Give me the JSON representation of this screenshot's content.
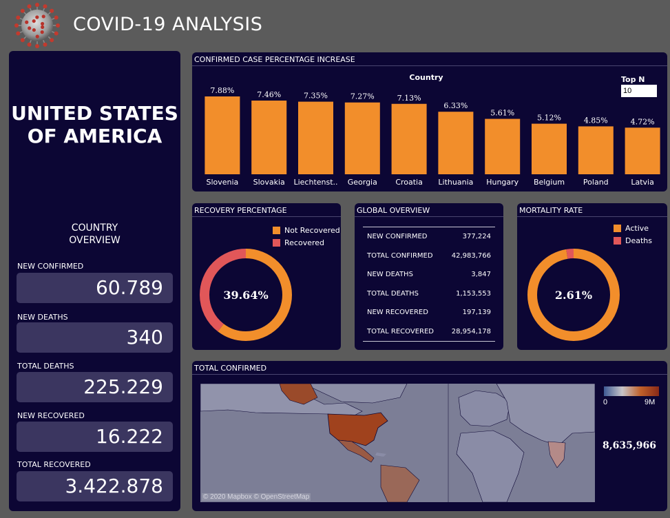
{
  "header": {
    "title": "COVID-19 ANALYSIS",
    "logo_icon": "coronavirus-icon"
  },
  "left_panel": {
    "country": "UNITED STATES OF AMERICA",
    "overview_title": "COUNTRY OVERVIEW",
    "kpis": [
      {
        "label": "NEW CONFIRMED",
        "value": "60.789"
      },
      {
        "label": "NEW DEATHS",
        "value": "340"
      },
      {
        "label": "TOTAL DEATHS",
        "value": "225.229"
      },
      {
        "label": "NEW RECOVERED",
        "value": "16.222"
      },
      {
        "label": "TOTAL RECOVERED",
        "value": "3.422.878"
      }
    ]
  },
  "bar_panel": {
    "title": "CONFIRMED CASE PERCENTAGE INCREASE",
    "topn_label": "Top N",
    "topn_value": "10"
  },
  "recovery_panel": {
    "title": "RECOVERY PERCENTAGE",
    "legend": [
      {
        "label": "Not Recovered",
        "color": "#f28e2b"
      },
      {
        "label": "Recovered",
        "color": "#e15759"
      }
    ],
    "center_label": "39.64%"
  },
  "global_panel": {
    "title": "GLOBAL OVERVIEW",
    "rows": [
      {
        "label": "NEW CONFIRMED",
        "value": "377,224"
      },
      {
        "label": "TOTAL CONFIRMED",
        "value": "42,983,766"
      },
      {
        "label": "NEW DEATHS",
        "value": "3,847"
      },
      {
        "label": "TOTAL DEATHS",
        "value": "1,153,553"
      },
      {
        "label": "NEW RECOVERED",
        "value": "197,139"
      },
      {
        "label": "TOTAL RECOVERED",
        "value": "28,954,178"
      }
    ]
  },
  "mortality_panel": {
    "title": "MORTALITY RATE",
    "legend": [
      {
        "label": "Active",
        "color": "#f28e2b"
      },
      {
        "label": "Deaths",
        "color": "#e15759"
      }
    ],
    "center_label": "2.61%"
  },
  "map_panel": {
    "title": "TOTAL CONFIRMED",
    "credit": "© 2020 Mapbox © OpenStreetMap",
    "scale_min": "0",
    "scale_max": "9M",
    "selected_total": "8,635,966"
  },
  "chart_data": [
    {
      "type": "bar",
      "title": "Country",
      "categories": [
        "Slovenia",
        "Slovakia",
        "Liechtenst..",
        "Georgia",
        "Croatia",
        "Lithuania",
        "Hungary",
        "Belgium",
        "Poland",
        "Latvia"
      ],
      "values": [
        7.88,
        7.46,
        7.35,
        7.27,
        7.13,
        6.33,
        5.61,
        5.12,
        4.85,
        4.72
      ],
      "value_labels": [
        "7.88%",
        "7.46%",
        "7.35%",
        "7.27%",
        "7.13%",
        "6.33%",
        "5.61%",
        "5.12%",
        "4.85%",
        "4.72%"
      ],
      "ylim": [
        0,
        7.88
      ],
      "color": "#f28e2b"
    },
    {
      "type": "pie",
      "title": "RECOVERY PERCENTAGE",
      "categories": [
        "Not Recovered",
        "Recovered"
      ],
      "values": [
        60.36,
        39.64
      ],
      "colors": [
        "#f28e2b",
        "#e15759"
      ]
    },
    {
      "type": "pie",
      "title": "MORTALITY RATE",
      "categories": [
        "Active",
        "Deaths"
      ],
      "values": [
        97.39,
        2.61
      ],
      "colors": [
        "#f28e2b",
        "#e15759"
      ]
    }
  ]
}
